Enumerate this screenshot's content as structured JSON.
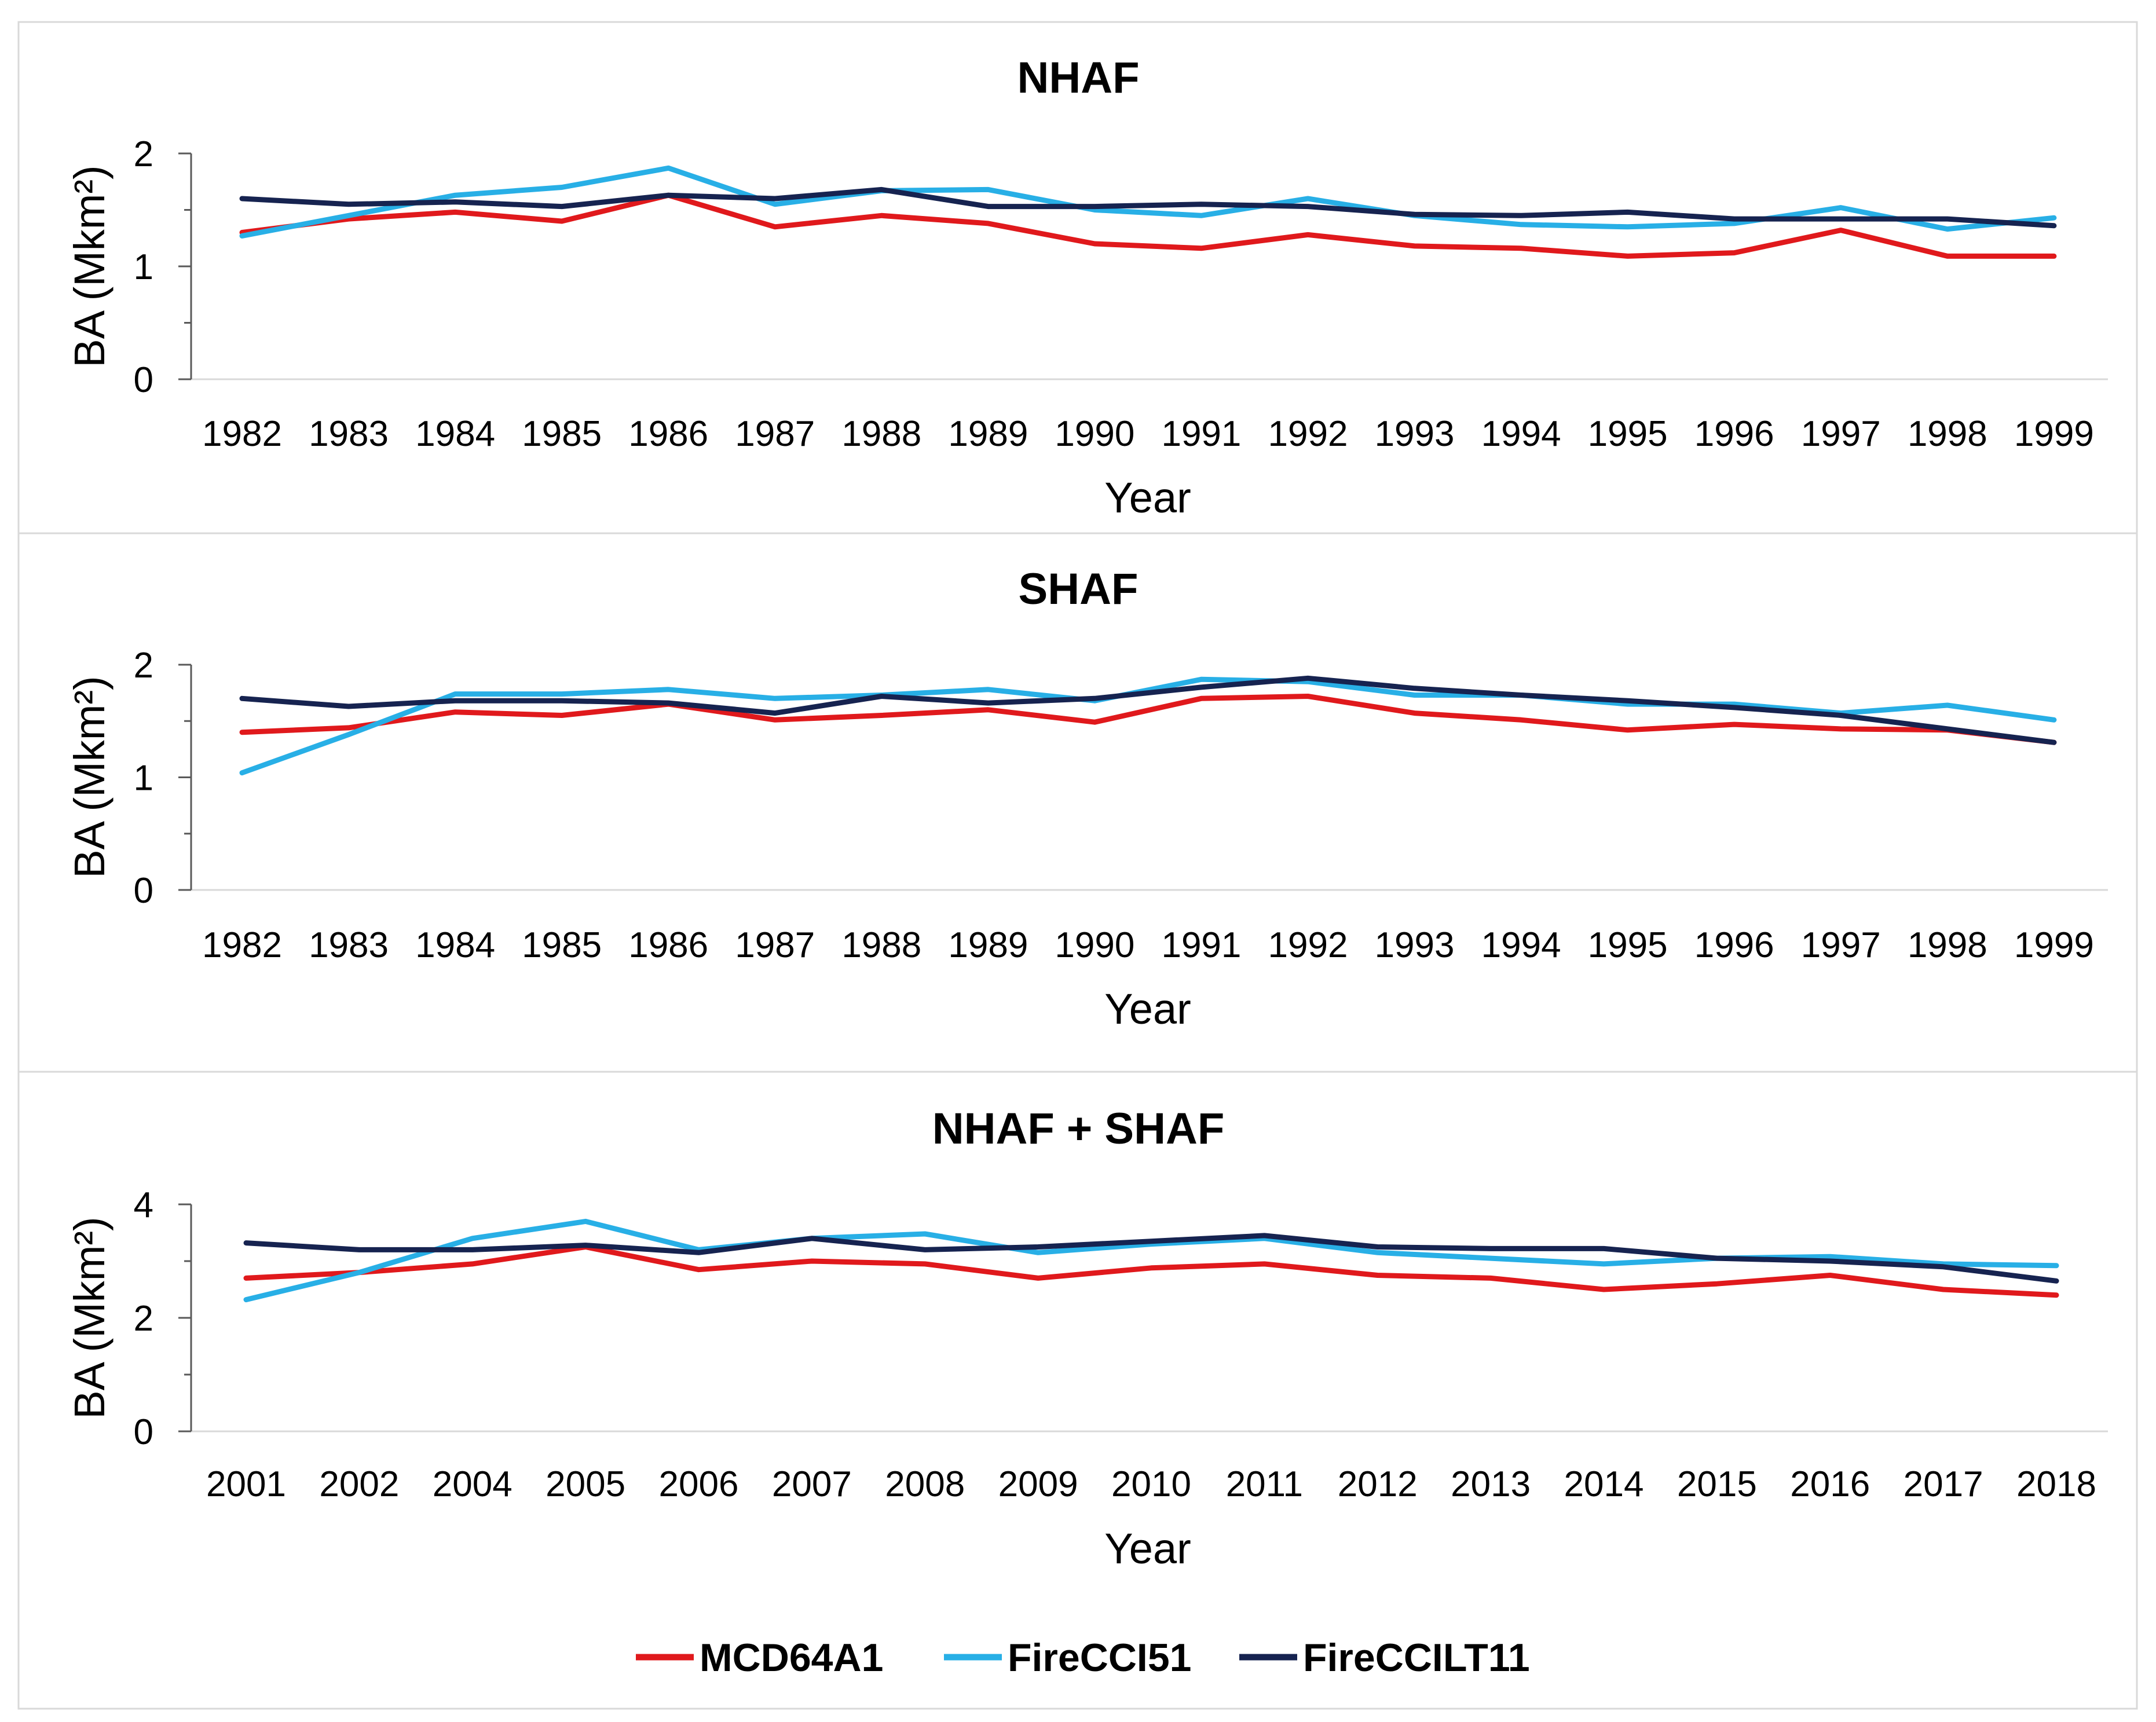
{
  "chart_data": [
    {
      "type": "line",
      "title": "NHAF",
      "xlabel": "Year",
      "ylabel": "BA (Mkm²)",
      "ylim": [
        0,
        2
      ],
      "yticks": [
        "0",
        "1",
        "2"
      ],
      "categories": [
        "1982",
        "1983",
        "1984",
        "1985",
        "1986",
        "1987",
        "1988",
        "1989",
        "1990",
        "1991",
        "1992",
        "1993",
        "1994",
        "1995",
        "1996",
        "1997",
        "1998",
        "1999"
      ],
      "series": [
        {
          "name": "MCD64A1",
          "color": "#e0191c",
          "values": [
            1.3,
            1.42,
            1.48,
            1.4,
            1.63,
            1.35,
            1.45,
            1.38,
            1.2,
            1.16,
            1.28,
            1.18,
            1.16,
            1.09,
            1.12,
            1.32,
            1.09,
            1.09
          ]
        },
        {
          "name": "FireCCI51",
          "color": "#28afe6",
          "values": [
            1.27,
            1.45,
            1.63,
            1.7,
            1.87,
            1.55,
            1.67,
            1.68,
            1.5,
            1.45,
            1.6,
            1.45,
            1.37,
            1.35,
            1.38,
            1.52,
            1.33,
            1.43
          ]
        },
        {
          "name": "FireCCILT11",
          "color": "#162350",
          "values": [
            1.6,
            1.55,
            1.57,
            1.53,
            1.63,
            1.6,
            1.68,
            1.53,
            1.53,
            1.55,
            1.53,
            1.46,
            1.45,
            1.48,
            1.42,
            1.42,
            1.42,
            1.36
          ]
        }
      ]
    },
    {
      "type": "line",
      "title": "SHAF",
      "xlabel": "Year",
      "ylabel": "BA (Mkm²)",
      "ylim": [
        0,
        2
      ],
      "yticks": [
        "0",
        "1",
        "2"
      ],
      "categories": [
        "1982",
        "1983",
        "1984",
        "1985",
        "1986",
        "1987",
        "1988",
        "1989",
        "1990",
        "1991",
        "1992",
        "1993",
        "1994",
        "1995",
        "1996",
        "1997",
        "1998",
        "1999"
      ],
      "series": [
        {
          "name": "MCD64A1",
          "color": "#e0191c",
          "values": [
            1.4,
            1.44,
            1.58,
            1.55,
            1.65,
            1.51,
            1.55,
            1.6,
            1.49,
            1.7,
            1.72,
            1.57,
            1.51,
            1.42,
            1.47,
            1.43,
            1.42,
            1.31
          ]
        },
        {
          "name": "FireCCI51",
          "color": "#28afe6",
          "values": [
            1.04,
            1.38,
            1.74,
            1.74,
            1.78,
            1.7,
            1.73,
            1.78,
            1.68,
            1.87,
            1.85,
            1.73,
            1.73,
            1.65,
            1.65,
            1.57,
            1.64,
            1.51
          ]
        },
        {
          "name": "FireCCILT11",
          "color": "#162350",
          "values": [
            1.7,
            1.63,
            1.68,
            1.68,
            1.66,
            1.57,
            1.72,
            1.66,
            1.7,
            1.8,
            1.88,
            1.79,
            1.73,
            1.68,
            1.62,
            1.55,
            1.43,
            1.31
          ]
        }
      ]
    },
    {
      "type": "line",
      "title": "NHAF + SHAF",
      "xlabel": "Year",
      "ylabel": "BA (Mkm²)",
      "ylim": [
        0,
        4
      ],
      "yticks": [
        "0",
        "2",
        "4"
      ],
      "categories": [
        "2001",
        "2002",
        "2004",
        "2005",
        "2006",
        "2007",
        "2008",
        "2009",
        "2010",
        "2011",
        "2012",
        "2013",
        "2014",
        "2015",
        "2016",
        "2017",
        "2018"
      ],
      "series": [
        {
          "name": "MCD64A1",
          "color": "#e0191c",
          "values": [
            2.7,
            2.8,
            2.95,
            3.25,
            2.85,
            3.0,
            2.95,
            2.7,
            2.88,
            2.95,
            2.75,
            2.7,
            2.5,
            2.6,
            2.75,
            2.5,
            2.4
          ]
        },
        {
          "name": "FireCCI51",
          "color": "#28afe6",
          "values": [
            2.32,
            2.8,
            3.4,
            3.7,
            3.2,
            3.4,
            3.48,
            3.15,
            3.3,
            3.4,
            3.15,
            3.05,
            2.95,
            3.05,
            3.08,
            2.95,
            2.92
          ]
        },
        {
          "name": "FireCCILT11",
          "color": "#162350",
          "values": [
            3.32,
            3.2,
            3.2,
            3.28,
            3.15,
            3.4,
            3.2,
            3.25,
            3.35,
            3.45,
            3.25,
            3.22,
            3.22,
            3.05,
            3.0,
            2.9,
            2.65
          ]
        }
      ]
    }
  ],
  "legend": [
    {
      "name": "MCD64A1",
      "color": "#e0191c"
    },
    {
      "name": "FireCCI51",
      "color": "#28afe6"
    },
    {
      "name": "FireCCILT11",
      "color": "#162350"
    }
  ]
}
